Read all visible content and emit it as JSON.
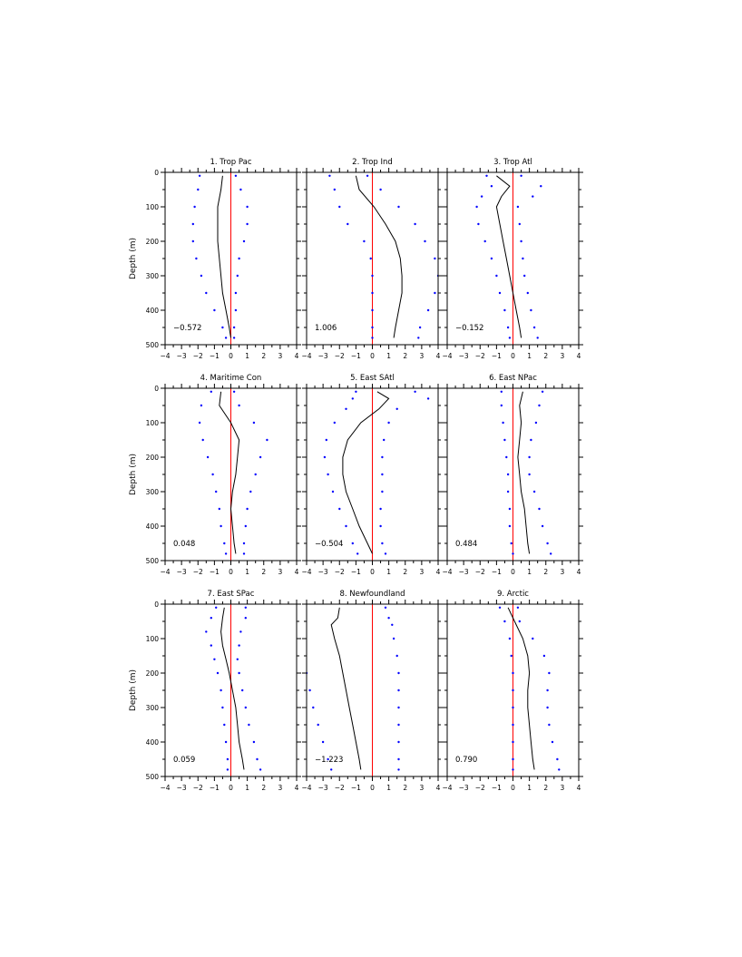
{
  "figure": {
    "ylabel": "Depth (m)",
    "xlim": [
      -4,
      4
    ],
    "ylim": [
      0,
      500
    ],
    "xticks": [
      -4,
      -3,
      -2,
      -1,
      0,
      1,
      2,
      3,
      4
    ],
    "yticks": [
      0,
      100,
      200,
      300,
      400,
      500
    ],
    "colors": {
      "mean": "#000000",
      "bounds": "#0000ff",
      "zero": "#ff0000"
    },
    "styles": {
      "mean": "solid line",
      "bounds": "dotted",
      "zero": "solid line"
    }
  },
  "chart_data": [
    {
      "type": "line",
      "title": "1. Trop Pac",
      "annotation": "−0.572",
      "xlim": [
        -4,
        4
      ],
      "ylim": [
        0,
        500
      ],
      "depth": [
        10,
        50,
        100,
        150,
        200,
        250,
        300,
        350,
        400,
        450,
        480
      ],
      "series": [
        {
          "values": [
            -0.5,
            -0.6,
            -0.8,
            -0.8,
            -0.8,
            -0.7,
            -0.6,
            -0.5,
            -0.3,
            -0.1,
            0.0
          ]
        },
        {
          "values": [
            -1.9,
            -2.0,
            -2.2,
            -2.3,
            -2.3,
            -2.1,
            -1.8,
            -1.5,
            -1.0,
            -0.5,
            -0.3
          ]
        },
        {
          "values": [
            0.3,
            0.6,
            1.0,
            1.0,
            0.8,
            0.5,
            0.4,
            0.3,
            0.3,
            0.2,
            0.2
          ]
        }
      ]
    },
    {
      "type": "line",
      "title": "2. Trop Ind",
      "annotation": "1.006",
      "xlim": [
        -4,
        4
      ],
      "ylim": [
        0,
        500
      ],
      "depth": [
        10,
        50,
        100,
        150,
        200,
        250,
        300,
        350,
        400,
        450,
        480
      ],
      "series": [
        {
          "values": [
            -1.0,
            -0.8,
            0.1,
            0.8,
            1.4,
            1.7,
            1.8,
            1.8,
            1.6,
            1.4,
            1.3
          ]
        },
        {
          "values": [
            -2.6,
            -2.3,
            -2.0,
            -1.5,
            -0.5,
            -0.1,
            0.0,
            0.0,
            0.0,
            0.0,
            0.0
          ]
        },
        {
          "values": [
            -0.3,
            0.5,
            1.6,
            2.6,
            3.2,
            3.8,
            4.0,
            3.8,
            3.4,
            2.9,
            2.8
          ]
        }
      ]
    },
    {
      "type": "line",
      "title": "3. Trop Atl",
      "annotation": "−0.152",
      "xlim": [
        -4,
        4
      ],
      "ylim": [
        0,
        500
      ],
      "depth": [
        10,
        40,
        70,
        100,
        150,
        200,
        250,
        300,
        350,
        400,
        450,
        480
      ],
      "series": [
        {
          "values": [
            -1.0,
            -0.2,
            -0.7,
            -1.0,
            -0.8,
            -0.6,
            -0.4,
            -0.2,
            0.0,
            0.2,
            0.4,
            0.5
          ]
        },
        {
          "values": [
            -1.6,
            -1.3,
            -1.9,
            -2.2,
            -2.1,
            -1.7,
            -1.3,
            -1.0,
            -0.8,
            -0.5,
            -0.3,
            -0.2
          ]
        },
        {
          "values": [
            0.5,
            1.7,
            1.2,
            0.3,
            0.4,
            0.5,
            0.6,
            0.7,
            0.9,
            1.1,
            1.3,
            1.5
          ]
        }
      ]
    },
    {
      "type": "line",
      "title": "4. Maritime Con",
      "annotation": "0.048",
      "xlim": [
        -4,
        4
      ],
      "ylim": [
        0,
        500
      ],
      "depth": [
        10,
        50,
        100,
        150,
        200,
        250,
        300,
        350,
        400,
        450,
        480
      ],
      "series": [
        {
          "values": [
            -0.6,
            -0.7,
            0.0,
            0.5,
            0.4,
            0.3,
            0.1,
            0.0,
            0.1,
            0.2,
            0.3
          ]
        },
        {
          "values": [
            -1.2,
            -1.8,
            -1.9,
            -1.7,
            -1.4,
            -1.1,
            -0.9,
            -0.7,
            -0.6,
            -0.4,
            -0.3
          ]
        },
        {
          "values": [
            0.2,
            0.5,
            1.4,
            2.2,
            1.8,
            1.5,
            1.2,
            1.0,
            0.9,
            0.8,
            0.8
          ]
        }
      ]
    },
    {
      "type": "line",
      "title": "5. East SAtl",
      "annotation": "−0.504",
      "xlim": [
        -4,
        4
      ],
      "ylim": [
        0,
        500
      ],
      "depth": [
        10,
        30,
        60,
        100,
        150,
        200,
        250,
        300,
        350,
        400,
        450,
        480
      ],
      "series": [
        {
          "values": [
            0.3,
            1.0,
            0.4,
            -0.7,
            -1.5,
            -1.8,
            -1.8,
            -1.6,
            -1.2,
            -0.8,
            -0.3,
            0.0
          ]
        },
        {
          "values": [
            -1.0,
            -1.2,
            -1.6,
            -2.3,
            -2.8,
            -2.9,
            -2.7,
            -2.4,
            -2.0,
            -1.6,
            -1.2,
            -0.9
          ]
        },
        {
          "values": [
            2.6,
            3.4,
            1.5,
            1.0,
            0.7,
            0.6,
            0.6,
            0.6,
            0.5,
            0.5,
            0.6,
            0.8
          ]
        }
      ]
    },
    {
      "type": "line",
      "title": "6. East NPac",
      "annotation": "0.484",
      "xlim": [
        -4,
        4
      ],
      "ylim": [
        0,
        500
      ],
      "depth": [
        10,
        50,
        100,
        150,
        200,
        250,
        300,
        350,
        400,
        450,
        480
      ],
      "series": [
        {
          "values": [
            0.6,
            0.4,
            0.5,
            0.4,
            0.3,
            0.4,
            0.5,
            0.7,
            0.8,
            0.9,
            1.0
          ]
        },
        {
          "values": [
            -0.7,
            -0.7,
            -0.6,
            -0.5,
            -0.4,
            -0.3,
            -0.3,
            -0.2,
            -0.2,
            -0.1,
            0.0
          ]
        },
        {
          "values": [
            1.8,
            1.6,
            1.4,
            1.1,
            1.0,
            1.0,
            1.3,
            1.6,
            1.8,
            2.1,
            2.3
          ]
        }
      ]
    },
    {
      "type": "line",
      "title": "7. East SPac",
      "annotation": "0.059",
      "xlim": [
        -4,
        4
      ],
      "ylim": [
        0,
        500
      ],
      "depth": [
        10,
        40,
        80,
        120,
        160,
        200,
        250,
        300,
        350,
        400,
        450,
        480
      ],
      "series": [
        {
          "values": [
            -0.4,
            -0.5,
            -0.6,
            -0.5,
            -0.3,
            -0.1,
            0.1,
            0.3,
            0.4,
            0.5,
            0.7,
            0.8
          ]
        },
        {
          "values": [
            -0.9,
            -1.2,
            -1.5,
            -1.2,
            -1.0,
            -0.8,
            -0.6,
            -0.5,
            -0.4,
            -0.3,
            -0.2,
            -0.2
          ]
        },
        {
          "values": [
            0.9,
            0.9,
            0.6,
            0.5,
            0.4,
            0.5,
            0.7,
            0.9,
            1.1,
            1.4,
            1.6,
            1.8
          ]
        }
      ]
    },
    {
      "type": "line",
      "title": "8. Newfoundland",
      "annotation": "−1.223",
      "xlim": [
        -4,
        4
      ],
      "ylim": [
        0,
        500
      ],
      "depth": [
        10,
        40,
        60,
        100,
        150,
        200,
        250,
        300,
        350,
        400,
        450,
        480
      ],
      "series": [
        {
          "values": [
            -2.0,
            -2.1,
            -2.5,
            -2.3,
            -2.0,
            -1.8,
            -1.6,
            -1.4,
            -1.2,
            -1.0,
            -0.8,
            -0.7
          ]
        },
        {
          "values": [
            -4.2,
            -4.2,
            -4.2,
            -4.2,
            -4.2,
            -4.0,
            -3.8,
            -3.6,
            -3.3,
            -3.0,
            -2.7,
            -2.5
          ]
        },
        {
          "values": [
            0.8,
            1.0,
            1.2,
            1.3,
            1.5,
            1.6,
            1.6,
            1.6,
            1.6,
            1.6,
            1.6,
            1.6
          ]
        }
      ]
    },
    {
      "type": "line",
      "title": "9. Arctic",
      "annotation": "0.790",
      "xlim": [
        -4,
        4
      ],
      "ylim": [
        0,
        500
      ],
      "depth": [
        10,
        50,
        100,
        150,
        200,
        250,
        300,
        350,
        400,
        450,
        480
      ],
      "series": [
        {
          "values": [
            -0.3,
            0.1,
            0.6,
            0.9,
            1.0,
            0.9,
            0.9,
            1.0,
            1.1,
            1.2,
            1.3
          ]
        },
        {
          "values": [
            -0.8,
            -0.5,
            -0.2,
            -0.1,
            0.0,
            0.0,
            0.0,
            0.0,
            0.0,
            0.0,
            0.0
          ]
        },
        {
          "values": [
            0.3,
            0.4,
            1.2,
            1.9,
            2.2,
            2.1,
            2.1,
            2.2,
            2.4,
            2.7,
            2.8
          ]
        }
      ]
    }
  ]
}
